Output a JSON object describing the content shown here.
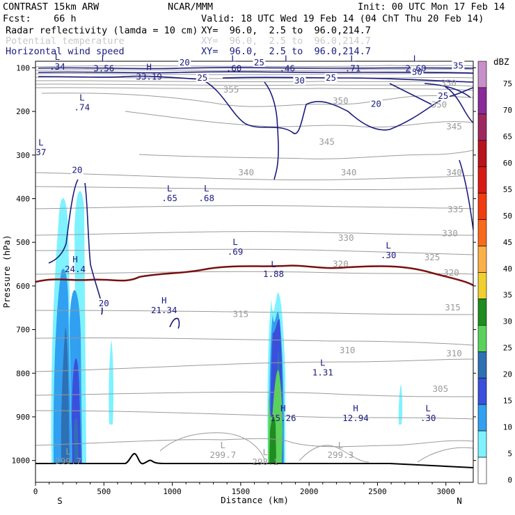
{
  "header": {
    "line1_left": "CONTRAST 15km ARW",
    "line1_mid": "NCAR/MMM",
    "line1_right": "Init: 00 UTC Mon 17 Feb 14",
    "line2_left": "Fcst:    66 h",
    "line2_right": "Valid: 18 UTC Wed 19 Feb 14 (04 ChT Thu 20 Feb 14)",
    "line3_left": "Radar reflectivity (lamda = 10 cm)",
    "line3_right": "XY=  96.0,  2.5 to  96.0,214.7",
    "line4_left": "Potential temperature",
    "line4_right": "XY=  96.0,  2.5 to  96.0,214.7",
    "line5_left": "Horizontal wind speed",
    "line5_right": "XY=  96.0,  2.5 to  96.0,214.7",
    "colors": {
      "black": "#000000",
      "faded": "#c8c8c8",
      "navy": "#1a1a80"
    }
  },
  "chart_data": {
    "type": "contour",
    "xlabel": "Distance (km)",
    "ylabel": "Pressure (hPa)",
    "xlim": [
      0,
      3200
    ],
    "ylim": [
      1050,
      85
    ],
    "x_ticks": [
      0,
      500,
      1000,
      1500,
      2000,
      2500,
      3000
    ],
    "x_tick_labels": [
      "0",
      "500",
      "1000",
      "1500",
      "2000",
      "2500",
      "3000"
    ],
    "y_ticks": [
      100,
      200,
      300,
      400,
      500,
      600,
      700,
      800,
      900,
      1000
    ],
    "y_tick_labels": [
      "100",
      "200",
      "300",
      "400",
      "500",
      "600",
      "700",
      "800",
      "900",
      "1000"
    ],
    "end_labels": {
      "left": "S",
      "right": "N"
    },
    "colorbar": {
      "title": "dBZ",
      "levels": [
        "75",
        "70",
        "65",
        "60",
        "55",
        "50",
        "45",
        "40",
        "35",
        "30",
        "25",
        "20",
        "15",
        "10",
        "5",
        "0"
      ],
      "colors": [
        "#c890c8",
        "#8a2c9a",
        "#a02860",
        "#b8141e",
        "#d81a16",
        "#f03c10",
        "#f86a1c",
        "#fbb04a",
        "#f0d030",
        "#1e8c1e",
        "#5ad25a",
        "#2e70b4",
        "#3a50dc",
        "#32a0f0",
        "#7ef2ff",
        "#ffffff"
      ]
    },
    "theta_labels": [
      {
        "text": "355",
        "x": 1430,
        "p": 150
      },
      {
        "text": "350",
        "x": 2230,
        "p": 176
      },
      {
        "text": "350",
        "x": 3020,
        "p": 135
      },
      {
        "text": "350",
        "x": 2950,
        "p": 185
      },
      {
        "text": "345",
        "x": 2130,
        "p": 270
      },
      {
        "text": "345",
        "x": 3060,
        "p": 235
      },
      {
        "text": "340",
        "x": 1540,
        "p": 340
      },
      {
        "text": "340",
        "x": 2290,
        "p": 340
      },
      {
        "text": "340",
        "x": 3060,
        "p": 340
      },
      {
        "text": "335",
        "x": 3070,
        "p": 425
      },
      {
        "text": "330",
        "x": 2270,
        "p": 490
      },
      {
        "text": "330",
        "x": 3030,
        "p": 480
      },
      {
        "text": "325",
        "x": 2900,
        "p": 535
      },
      {
        "text": "320",
        "x": 2230,
        "p": 550
      },
      {
        "text": "320",
        "x": 3040,
        "p": 570
      },
      {
        "text": "315",
        "x": 1500,
        "p": 665
      },
      {
        "text": "315",
        "x": 3050,
        "p": 650
      },
      {
        "text": "310",
        "x": 2280,
        "p": 748
      },
      {
        "text": "310",
        "x": 3060,
        "p": 755
      },
      {
        "text": "305",
        "x": 2960,
        "p": 836
      }
    ],
    "wind_labels": [
      {
        "text": "20",
        "x": 305,
        "p": 335
      },
      {
        "text": "20",
        "x": 1090,
        "p": 88
      },
      {
        "text": "25",
        "x": 1635,
        "p": 88
      },
      {
        "text": "25",
        "x": 1220,
        "p": 123
      },
      {
        "text": "30",
        "x": 1930,
        "p": 130
      },
      {
        "text": "25",
        "x": 2160,
        "p": 123
      },
      {
        "text": "20",
        "x": 2490,
        "p": 183
      },
      {
        "text": "30",
        "x": 2790,
        "p": 110
      },
      {
        "text": "35",
        "x": 3090,
        "p": 95
      },
      {
        "text": "25",
        "x": 2980,
        "p": 165
      },
      {
        "text": "20",
        "x": 500,
        "p": 640
      }
    ],
    "extrema": [
      {
        "type": "L",
        "value": ".34",
        "x": 160,
        "p": 82
      },
      {
        "type": "L",
        "value": "3.56",
        "x": 500,
        "p": 86
      },
      {
        "type": "H",
        "value": "33.19",
        "x": 830,
        "p": 105
      },
      {
        "type": "L",
        "value": ".60",
        "x": 1450,
        "p": 86
      },
      {
        "type": "L",
        "value": ".46",
        "x": 1840,
        "p": 86
      },
      {
        "type": "L",
        "value": ".71",
        "x": 2320,
        "p": 86
      },
      {
        "type": "L",
        "value": "2.60",
        "x": 2780,
        "p": 86
      },
      {
        "type": "L",
        "value": ".74",
        "x": 340,
        "p": 175
      },
      {
        "type": "L",
        "value": "37",
        "x": 40,
        "p": 278
      },
      {
        "type": "L",
        "value": ".65",
        "x": 980,
        "p": 383
      },
      {
        "type": "L",
        "value": ".68",
        "x": 1250,
        "p": 383
      },
      {
        "type": "L",
        "value": ".69",
        "x": 1460,
        "p": 506
      },
      {
        "type": "L",
        "value": ".30",
        "x": 2580,
        "p": 514
      },
      {
        "type": "H",
        "value": "24.4",
        "x": 290,
        "p": 546
      },
      {
        "type": "L",
        "value": "1.88",
        "x": 1740,
        "p": 557
      },
      {
        "type": "H",
        "value": "21.34",
        "x": 940,
        "p": 640
      },
      {
        "type": "L",
        "value": "1.31",
        "x": 2100,
        "p": 783
      },
      {
        "type": "H",
        "value": "15.26",
        "x": 1810,
        "p": 887
      },
      {
        "type": "H",
        "value": "12.94",
        "x": 2340,
        "p": 887
      },
      {
        "type": "L",
        "value": ".30",
        "x": 2870,
        "p": 887
      },
      {
        "type": "L",
        "value": "299.7",
        "x": 240,
        "p": 986
      },
      {
        "type": "L",
        "value": "299.7",
        "x": 1370,
        "p": 972
      },
      {
        "type": "L",
        "value": "298.1",
        "x": 1680,
        "p": 988
      },
      {
        "type": "L",
        "value": "299.3",
        "x": 2230,
        "p": 972
      }
    ]
  }
}
